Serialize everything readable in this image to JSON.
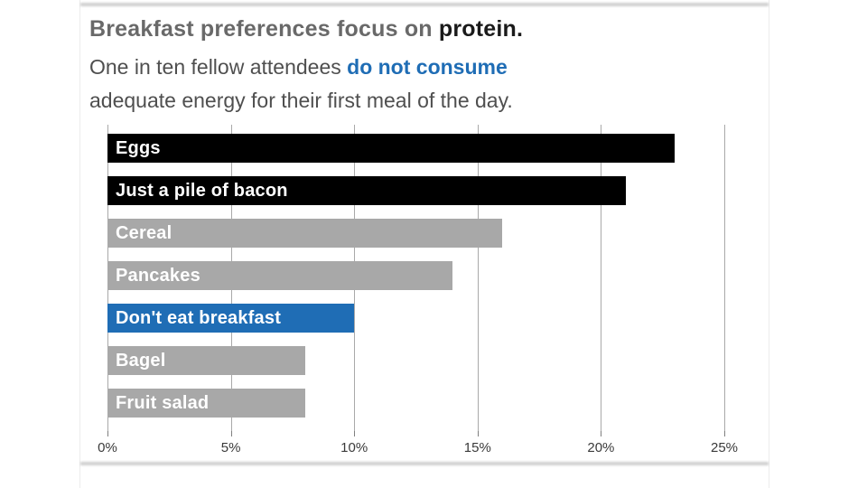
{
  "header": {
    "title_prefix": "Breakfast preferences focus on ",
    "title_emphasis": "protein.",
    "subtitle_prefix": "One in ten fellow attendees ",
    "subtitle_emphasis": "do not consume",
    "subtitle_line2": "adequate energy for their first meal of the day."
  },
  "chart_data": {
    "type": "bar",
    "orientation": "horizontal",
    "title": "Breakfast preferences focus on protein.",
    "subtitle": "One in ten fellow attendees do not consume adequate energy for their first meal of the day.",
    "categories": [
      "Eggs",
      "Just a pile of bacon",
      "Cereal",
      "Pancakes",
      "Don't eat breakfast",
      "Bagel",
      "Fruit salad"
    ],
    "values": [
      23,
      21,
      16,
      14,
      10,
      8,
      8
    ],
    "value_unit": "%",
    "xlim": [
      0,
      25
    ],
    "x_ticks": [
      "0%",
      "5%",
      "10%",
      "15%",
      "20%",
      "25%"
    ],
    "grid": true,
    "legend_position": "none",
    "category_label_position": "inside-left",
    "category_label_color": "#ffffff",
    "bar_colors": [
      "#000000",
      "#000000",
      "#a8a8a8",
      "#a8a8a8",
      "#1f6db5",
      "#a8a8a8",
      "#a8a8a8"
    ]
  },
  "colors": {
    "accent_blue": "#1f6db5",
    "bar_black": "#000000",
    "bar_gray": "#a8a8a8",
    "title_gray": "#696969",
    "title_emphasis_black": "#1a1a1a",
    "subtitle_gray": "#4f4f4f",
    "gridline_gray": "#a9a9a9",
    "axis_text": "#3a3a3a",
    "slide_edge_gray": "#d2d2d2",
    "background": "#ffffff"
  }
}
